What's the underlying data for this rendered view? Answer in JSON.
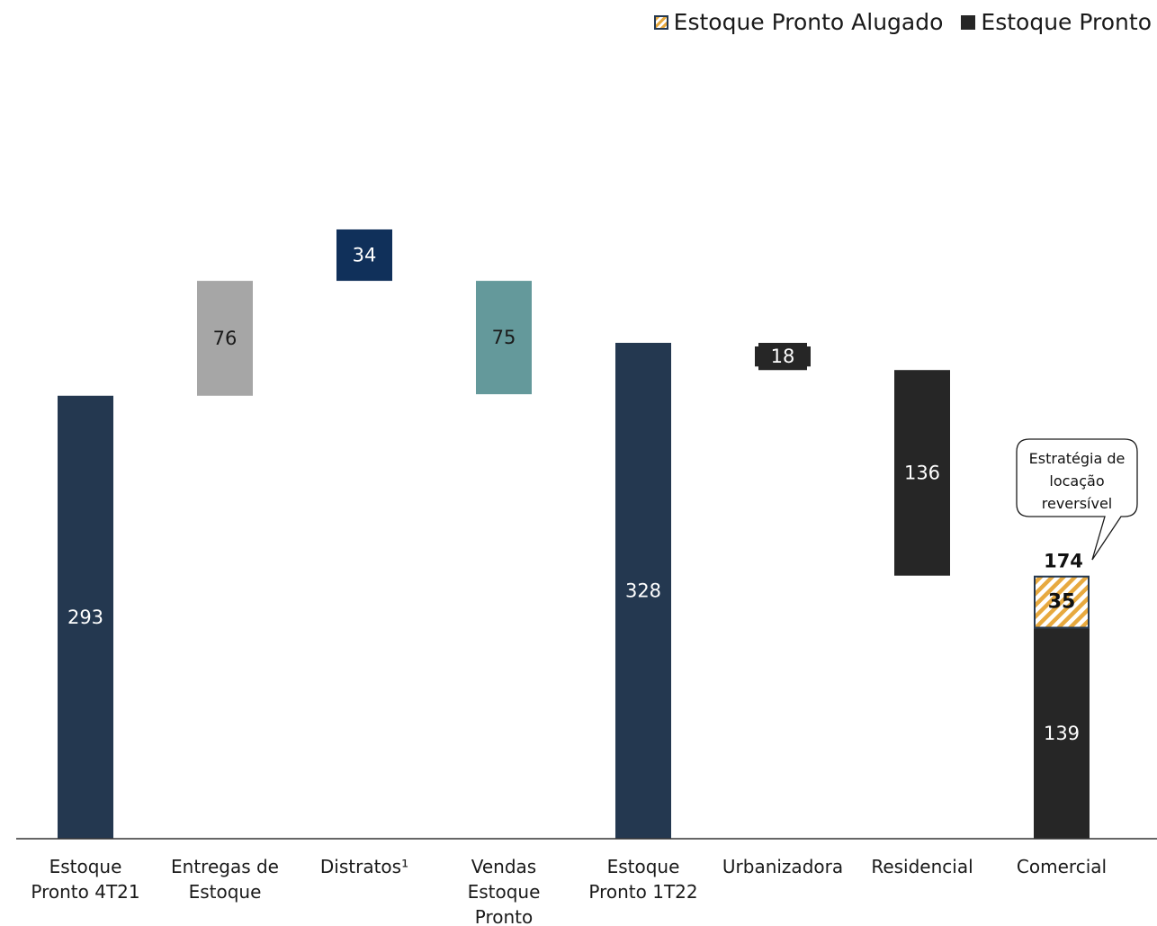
{
  "legend": {
    "items": [
      {
        "label": "Estoque Pronto Alugado",
        "color": "#e7a93f"
      },
      {
        "label": "Estoque Pronto",
        "color": "#262626"
      }
    ]
  },
  "chart_data": {
    "type": "bar",
    "subtype": "waterfall",
    "title": "",
    "xlabel": "",
    "ylabel": "",
    "ylim": [
      0,
      500
    ],
    "categories": [
      [
        "Estoque",
        "Pronto 4T21"
      ],
      [
        "Entregas de",
        "Estoque"
      ],
      [
        "Distratos¹"
      ],
      [
        "Vendas",
        "Estoque",
        "Pronto"
      ],
      [
        "Estoque",
        "Pronto 1T22"
      ],
      [
        "Urbanizadora"
      ],
      [
        "Residencial"
      ],
      [
        "Comercial"
      ]
    ],
    "bars": [
      {
        "category": 0,
        "segments": [
          {
            "start": 0,
            "end": 293,
            "label": "293",
            "color": "#243850",
            "style": "solid"
          }
        ]
      },
      {
        "category": 1,
        "segments": [
          {
            "start": 293,
            "end": 369,
            "label": "76",
            "color": "#a6a6a6",
            "style": "solid"
          }
        ]
      },
      {
        "category": 2,
        "segments": [
          {
            "start": 369,
            "end": 403,
            "label": "34",
            "color": "#10305a",
            "style": "solid"
          }
        ]
      },
      {
        "category": 3,
        "segments": [
          {
            "start": 294,
            "end": 369,
            "label": "75",
            "color": "#64999b",
            "style": "solid"
          }
        ]
      },
      {
        "category": 4,
        "segments": [
          {
            "start": 0,
            "end": 328,
            "label": "328",
            "color": "#243850",
            "style": "solid"
          }
        ]
      },
      {
        "category": 5,
        "segments": [
          {
            "start": 310,
            "end": 328,
            "label": "18",
            "color": "#262626",
            "style": "notched"
          }
        ]
      },
      {
        "category": 6,
        "segments": [
          {
            "start": 174,
            "end": 310,
            "label": "136",
            "color": "#262626",
            "style": "solid"
          }
        ]
      },
      {
        "category": 7,
        "total_label": "174",
        "segments": [
          {
            "start": 0,
            "end": 139,
            "label": "139",
            "color": "#262626",
            "style": "solid"
          },
          {
            "start": 139,
            "end": 174,
            "label": "35",
            "color": "#e7a93f",
            "style": "hatched"
          }
        ]
      }
    ],
    "annotations": [
      {
        "category": 7,
        "text": [
          "Estratégia de",
          "locação",
          "reversível"
        ],
        "type": "callout"
      }
    ]
  }
}
